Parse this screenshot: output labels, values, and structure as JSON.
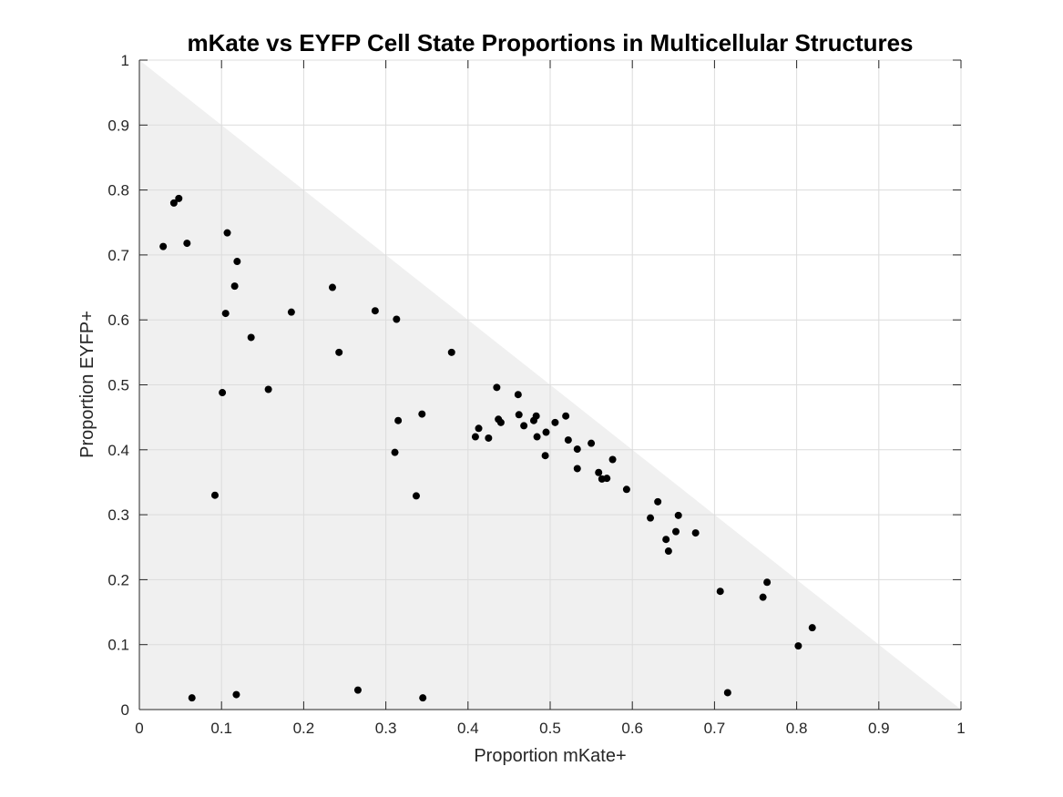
{
  "chart_data": {
    "type": "scatter",
    "title": "mKate vs EYFP Cell State Proportions in Multicellular Structures",
    "xlabel": "Proportion mKate+",
    "ylabel": "Proportion EYFP+",
    "xlim": [
      0,
      1
    ],
    "ylim": [
      0,
      1
    ],
    "grid": true,
    "xticks": [
      "0",
      "0.1",
      "0.2",
      "0.3",
      "0.4",
      "0.5",
      "0.6",
      "0.7",
      "0.8",
      "0.9",
      "1"
    ],
    "yticks": [
      "0",
      "0.1",
      "0.2",
      "0.3",
      "0.4",
      "0.5",
      "0.6",
      "0.7",
      "0.8",
      "0.9",
      "1"
    ],
    "region_fill_color": "#f0f0f0",
    "point_color": "#000000",
    "series": [
      {
        "points": [
          [
            0.029,
            0.713
          ],
          [
            0.042,
            0.78
          ],
          [
            0.048,
            0.787
          ],
          [
            0.058,
            0.718
          ],
          [
            0.064,
            0.018
          ],
          [
            0.092,
            0.33
          ],
          [
            0.101,
            0.488
          ],
          [
            0.105,
            0.61
          ],
          [
            0.107,
            0.734
          ],
          [
            0.116,
            0.652
          ],
          [
            0.118,
            0.023
          ],
          [
            0.119,
            0.69
          ],
          [
            0.136,
            0.573
          ],
          [
            0.157,
            0.493
          ],
          [
            0.185,
            0.612
          ],
          [
            0.235,
            0.65
          ],
          [
            0.243,
            0.55
          ],
          [
            0.266,
            0.03
          ],
          [
            0.287,
            0.614
          ],
          [
            0.311,
            0.396
          ],
          [
            0.313,
            0.601
          ],
          [
            0.315,
            0.445
          ],
          [
            0.337,
            0.329
          ],
          [
            0.344,
            0.455
          ],
          [
            0.345,
            0.018
          ],
          [
            0.38,
            0.55
          ],
          [
            0.409,
            0.42
          ],
          [
            0.413,
            0.433
          ],
          [
            0.425,
            0.418
          ],
          [
            0.435,
            0.496
          ],
          [
            0.437,
            0.447
          ],
          [
            0.44,
            0.442
          ],
          [
            0.461,
            0.485
          ],
          [
            0.462,
            0.454
          ],
          [
            0.468,
            0.437
          ],
          [
            0.48,
            0.445
          ],
          [
            0.483,
            0.452
          ],
          [
            0.484,
            0.42
          ],
          [
            0.494,
            0.391
          ],
          [
            0.495,
            0.427
          ],
          [
            0.506,
            0.442
          ],
          [
            0.519,
            0.452
          ],
          [
            0.522,
            0.415
          ],
          [
            0.533,
            0.401
          ],
          [
            0.533,
            0.371
          ],
          [
            0.55,
            0.41
          ],
          [
            0.559,
            0.365
          ],
          [
            0.563,
            0.355
          ],
          [
            0.569,
            0.356
          ],
          [
            0.576,
            0.385
          ],
          [
            0.593,
            0.339
          ],
          [
            0.622,
            0.295
          ],
          [
            0.631,
            0.32
          ],
          [
            0.641,
            0.262
          ],
          [
            0.644,
            0.244
          ],
          [
            0.653,
            0.274
          ],
          [
            0.656,
            0.299
          ],
          [
            0.677,
            0.272
          ],
          [
            0.707,
            0.182
          ],
          [
            0.716,
            0.026
          ],
          [
            0.759,
            0.173
          ],
          [
            0.764,
            0.196
          ],
          [
            0.802,
            0.098
          ],
          [
            0.819,
            0.126
          ]
        ]
      }
    ]
  }
}
